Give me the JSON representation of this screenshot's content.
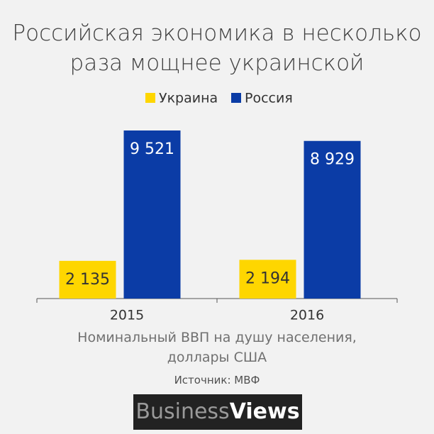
{
  "chart_data": {
    "type": "bar",
    "title": "Российская экономика в несколько раза мощнее украинской",
    "categories": [
      "2015",
      "2016"
    ],
    "series": [
      {
        "name": "Украина",
        "color": "#fed600",
        "values": [
          2135,
          2194
        ],
        "value_labels": [
          "2 135",
          "2 194"
        ]
      },
      {
        "name": "Россия",
        "color": "#0b3ca6",
        "values": [
          9521,
          8929
        ],
        "value_labels": [
          "9 521",
          "8 929"
        ]
      }
    ],
    "xlabel": "Номинальный ВВП на душу населения, доллары США",
    "source": "Источник: МВФ"
  },
  "logo": {
    "part1": "Business",
    "part2": "Views"
  }
}
